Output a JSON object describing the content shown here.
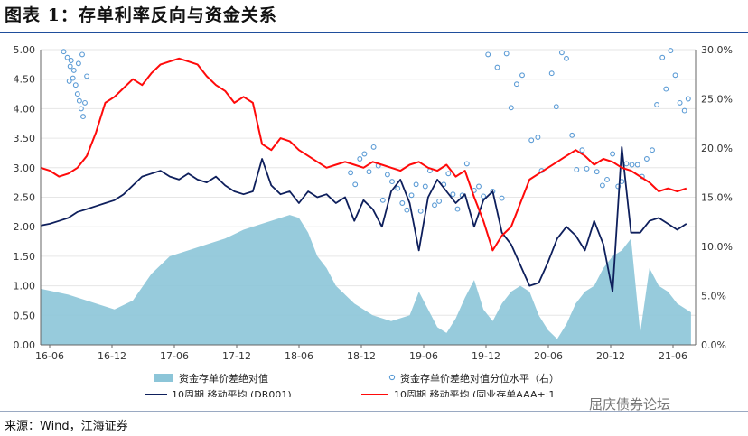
{
  "title": "图表 1：存单利率反向与资金关系",
  "source": "来源：Wind，江海证券",
  "watermark": "屈庆债券论坛",
  "chart_data": {
    "type": "line",
    "x_tick_labels": [
      "16-06",
      "16-12",
      "17-06",
      "17-12",
      "18-06",
      "18-12",
      "19-06",
      "19-12",
      "20-06",
      "20-12",
      "21-06"
    ],
    "x_range": [
      "2016-04",
      "2021-10"
    ],
    "left_axis": {
      "range": [
        0,
        5
      ],
      "ticks": [
        "0.00",
        "0.50",
        "1.00",
        "1.50",
        "2.00",
        "2.50",
        "3.00",
        "3.50",
        "4.00",
        "4.50",
        "5.00"
      ]
    },
    "right_axis": {
      "range": [
        0,
        30
      ],
      "ticks": [
        "0.0%",
        "5.0%",
        "10.0%",
        "15.0%",
        "20.0%",
        "25.0%",
        "30.0%"
      ]
    },
    "legend": [
      "资金存单价差绝对值",
      "资金存单价差绝对值分位水平（右）",
      "10周期 移动平均 (DR001)",
      "10周期 移动平均 (同业存单AAA+:1"
    ],
    "series": [
      {
        "name": "资金存单价差绝对值",
        "type": "area",
        "axis": "left",
        "color": "#8cc5d8",
        "points": [
          [
            0,
            0.95
          ],
          [
            3,
            0.85
          ],
          [
            6,
            0.7
          ],
          [
            8,
            0.6
          ],
          [
            10,
            0.75
          ],
          [
            12,
            1.2
          ],
          [
            14,
            1.5
          ],
          [
            16,
            1.6
          ],
          [
            18,
            1.7
          ],
          [
            20,
            1.8
          ],
          [
            22,
            1.95
          ],
          [
            24,
            2.05
          ],
          [
            26,
            2.15
          ],
          [
            27,
            2.2
          ],
          [
            28,
            2.15
          ],
          [
            29,
            1.9
          ],
          [
            30,
            1.5
          ],
          [
            31,
            1.3
          ],
          [
            32,
            1.0
          ],
          [
            34,
            0.7
          ],
          [
            36,
            0.5
          ],
          [
            38,
            0.4
          ],
          [
            40,
            0.5
          ],
          [
            41,
            0.9
          ],
          [
            42,
            0.6
          ],
          [
            43,
            0.3
          ],
          [
            44,
            0.2
          ],
          [
            45,
            0.45
          ],
          [
            46,
            0.8
          ],
          [
            47,
            1.1
          ],
          [
            48,
            0.6
          ],
          [
            49,
            0.4
          ],
          [
            50,
            0.7
          ],
          [
            51,
            0.9
          ],
          [
            52,
            1.0
          ],
          [
            53,
            0.9
          ],
          [
            54,
            0.5
          ],
          [
            55,
            0.25
          ],
          [
            56,
            0.1
          ],
          [
            57,
            0.35
          ],
          [
            58,
            0.7
          ],
          [
            59,
            0.9
          ],
          [
            60,
            1.0
          ],
          [
            61,
            1.3
          ],
          [
            62,
            1.5
          ],
          [
            63,
            1.6
          ],
          [
            64,
            1.8
          ],
          [
            65,
            0.2
          ],
          [
            66,
            1.3
          ],
          [
            67,
            1.0
          ],
          [
            68,
            0.9
          ],
          [
            69,
            0.7
          ],
          [
            70,
            0.6
          ],
          [
            70.5,
            0.55
          ]
        ]
      },
      {
        "name": "10周期 移动平均 (DR001)",
        "type": "line",
        "axis": "left",
        "color": "#0e1f5c",
        "points": [
          [
            0,
            2.02
          ],
          [
            1,
            2.05
          ],
          [
            2,
            2.1
          ],
          [
            3,
            2.15
          ],
          [
            4,
            2.25
          ],
          [
            5,
            2.3
          ],
          [
            6,
            2.35
          ],
          [
            7,
            2.4
          ],
          [
            8,
            2.45
          ],
          [
            9,
            2.55
          ],
          [
            10,
            2.7
          ],
          [
            11,
            2.85
          ],
          [
            12,
            2.9
          ],
          [
            13,
            2.95
          ],
          [
            14,
            2.85
          ],
          [
            15,
            2.8
          ],
          [
            16,
            2.9
          ],
          [
            17,
            2.8
          ],
          [
            18,
            2.75
          ],
          [
            19,
            2.85
          ],
          [
            20,
            2.7
          ],
          [
            21,
            2.6
          ],
          [
            22,
            2.55
          ],
          [
            23,
            2.6
          ],
          [
            24,
            3.15
          ],
          [
            25,
            2.7
          ],
          [
            26,
            2.55
          ],
          [
            27,
            2.6
          ],
          [
            28,
            2.4
          ],
          [
            29,
            2.6
          ],
          [
            30,
            2.5
          ],
          [
            31,
            2.55
          ],
          [
            32,
            2.4
          ],
          [
            33,
            2.5
          ],
          [
            34,
            2.1
          ],
          [
            35,
            2.45
          ],
          [
            36,
            2.3
          ],
          [
            37,
            2.0
          ],
          [
            38,
            2.6
          ],
          [
            39,
            2.8
          ],
          [
            40,
            2.4
          ],
          [
            41,
            1.6
          ],
          [
            42,
            2.5
          ],
          [
            43,
            2.8
          ],
          [
            44,
            2.6
          ],
          [
            45,
            2.4
          ],
          [
            46,
            2.55
          ],
          [
            47,
            2.0
          ],
          [
            48,
            2.45
          ],
          [
            49,
            2.6
          ],
          [
            50,
            1.9
          ],
          [
            51,
            1.7
          ],
          [
            52,
            1.35
          ],
          [
            53,
            1.0
          ],
          [
            54,
            1.05
          ],
          [
            55,
            1.4
          ],
          [
            56,
            1.8
          ],
          [
            57,
            2.0
          ],
          [
            58,
            1.85
          ],
          [
            59,
            1.6
          ],
          [
            60,
            2.1
          ],
          [
            61,
            1.7
          ],
          [
            62,
            0.9
          ],
          [
            63,
            3.35
          ],
          [
            64,
            1.9
          ],
          [
            65,
            1.9
          ],
          [
            66,
            2.1
          ],
          [
            67,
            2.15
          ],
          [
            68,
            2.05
          ],
          [
            69,
            1.95
          ],
          [
            70,
            2.05
          ]
        ]
      },
      {
        "name": "10周期 移动平均 (同业存单AAA+:1",
        "type": "line",
        "axis": "left",
        "color": "#ff0a0a",
        "points": [
          [
            0,
            3.0
          ],
          [
            1,
            2.95
          ],
          [
            2,
            2.85
          ],
          [
            3,
            2.9
          ],
          [
            4,
            3.0
          ],
          [
            5,
            3.2
          ],
          [
            6,
            3.6
          ],
          [
            7,
            4.1
          ],
          [
            8,
            4.2
          ],
          [
            9,
            4.35
          ],
          [
            10,
            4.5
          ],
          [
            11,
            4.4
          ],
          [
            12,
            4.6
          ],
          [
            13,
            4.75
          ],
          [
            14,
            4.8
          ],
          [
            15,
            4.85
          ],
          [
            16,
            4.8
          ],
          [
            17,
            4.75
          ],
          [
            18,
            4.55
          ],
          [
            19,
            4.4
          ],
          [
            20,
            4.3
          ],
          [
            21,
            4.1
          ],
          [
            22,
            4.2
          ],
          [
            23,
            4.1
          ],
          [
            24,
            3.4
          ],
          [
            25,
            3.3
          ],
          [
            26,
            3.5
          ],
          [
            27,
            3.45
          ],
          [
            28,
            3.3
          ],
          [
            29,
            3.2
          ],
          [
            30,
            3.1
          ],
          [
            31,
            3.0
          ],
          [
            32,
            3.05
          ],
          [
            33,
            3.1
          ],
          [
            34,
            3.05
          ],
          [
            35,
            3.0
          ],
          [
            36,
            3.1
          ],
          [
            37,
            3.05
          ],
          [
            38,
            3.0
          ],
          [
            39,
            2.95
          ],
          [
            40,
            3.05
          ],
          [
            41,
            3.1
          ],
          [
            42,
            3.0
          ],
          [
            43,
            2.95
          ],
          [
            44,
            3.05
          ],
          [
            45,
            2.85
          ],
          [
            46,
            2.95
          ],
          [
            47,
            2.5
          ],
          [
            48,
            2.1
          ],
          [
            49,
            1.6
          ],
          [
            50,
            1.85
          ],
          [
            51,
            2.0
          ],
          [
            52,
            2.4
          ],
          [
            53,
            2.8
          ],
          [
            54,
            2.9
          ],
          [
            55,
            3.0
          ],
          [
            56,
            3.1
          ],
          [
            57,
            3.2
          ],
          [
            58,
            3.3
          ],
          [
            59,
            3.2
          ],
          [
            60,
            3.05
          ],
          [
            61,
            3.15
          ],
          [
            62,
            3.1
          ],
          [
            63,
            3.0
          ],
          [
            64,
            2.95
          ],
          [
            65,
            2.85
          ],
          [
            66,
            2.75
          ],
          [
            67,
            2.6
          ],
          [
            68,
            2.65
          ],
          [
            69,
            2.6
          ],
          [
            70,
            2.65
          ]
        ]
      }
    ],
    "scatter_series": {
      "name": "资金存单价差绝对值分位水平（右）",
      "axis": "right",
      "color": "#5b9bd5",
      "points": [
        [
          2.5,
          29.8
        ],
        [
          2.9,
          29.2
        ],
        [
          3.2,
          28.3
        ],
        [
          3.5,
          27.1
        ],
        [
          3.8,
          26.4
        ],
        [
          4.0,
          25.5
        ],
        [
          4.2,
          24.8
        ],
        [
          4.4,
          24.0
        ],
        [
          4.6,
          23.2
        ],
        [
          4.8,
          24.6
        ],
        [
          3.1,
          26.8
        ],
        [
          3.6,
          27.9
        ],
        [
          4.1,
          28.6
        ],
        [
          4.5,
          29.5
        ],
        [
          3.3,
          28.9
        ],
        [
          5.0,
          27.3
        ],
        [
          48.5,
          29.5
        ],
        [
          49.5,
          28.2
        ],
        [
          50.5,
          29.6
        ],
        [
          51.0,
          24.1
        ],
        [
          51.6,
          26.5
        ],
        [
          52.2,
          27.4
        ],
        [
          53.2,
          20.8
        ],
        [
          53.9,
          21.1
        ],
        [
          54.3,
          17.7
        ],
        [
          55.4,
          27.6
        ],
        [
          55.9,
          24.2
        ],
        [
          56.5,
          29.7
        ],
        [
          57.0,
          29.1
        ],
        [
          57.6,
          21.3
        ],
        [
          58.1,
          17.8
        ],
        [
          58.7,
          19.8
        ],
        [
          59.2,
          17.9
        ],
        [
          60.3,
          17.6
        ],
        [
          60.9,
          16.2
        ],
        [
          61.4,
          16.8
        ],
        [
          62.0,
          19.4
        ],
        [
          62.6,
          16.1
        ],
        [
          63.0,
          16.6
        ],
        [
          63.5,
          18.4
        ],
        [
          64.1,
          18.3
        ],
        [
          64.7,
          18.3
        ],
        [
          65.2,
          17.1
        ],
        [
          65.7,
          18.9
        ],
        [
          66.3,
          19.8
        ],
        [
          66.8,
          24.4
        ],
        [
          67.4,
          29.2
        ],
        [
          67.8,
          26.0
        ],
        [
          68.3,
          29.9
        ],
        [
          68.8,
          27.4
        ],
        [
          69.3,
          24.6
        ],
        [
          69.8,
          23.8
        ],
        [
          70.2,
          25.0
        ],
        [
          33.6,
          17.5
        ],
        [
          34.1,
          16.3
        ],
        [
          34.6,
          18.9
        ],
        [
          35.1,
          19.4
        ],
        [
          35.6,
          17.6
        ],
        [
          36.1,
          20.1
        ],
        [
          36.6,
          18.2
        ],
        [
          37.1,
          14.7
        ],
        [
          37.6,
          17.3
        ],
        [
          38.1,
          16.6
        ],
        [
          38.7,
          15.9
        ],
        [
          39.2,
          14.4
        ],
        [
          39.7,
          13.7
        ],
        [
          40.2,
          15.2
        ],
        [
          40.7,
          16.3
        ],
        [
          41.2,
          13.6
        ],
        [
          41.7,
          16.1
        ],
        [
          42.2,
          17.7
        ],
        [
          42.7,
          14.2
        ],
        [
          43.2,
          14.6
        ],
        [
          43.7,
          16.3
        ],
        [
          44.2,
          17.4
        ],
        [
          44.7,
          15.3
        ],
        [
          45.2,
          13.8
        ],
        [
          45.7,
          15.2
        ],
        [
          46.2,
          18.4
        ],
        [
          47.0,
          15.7
        ],
        [
          47.5,
          16.1
        ],
        [
          48.0,
          15.1
        ],
        [
          49.0,
          15.6
        ],
        [
          50.0,
          14.9
        ]
      ]
    }
  }
}
